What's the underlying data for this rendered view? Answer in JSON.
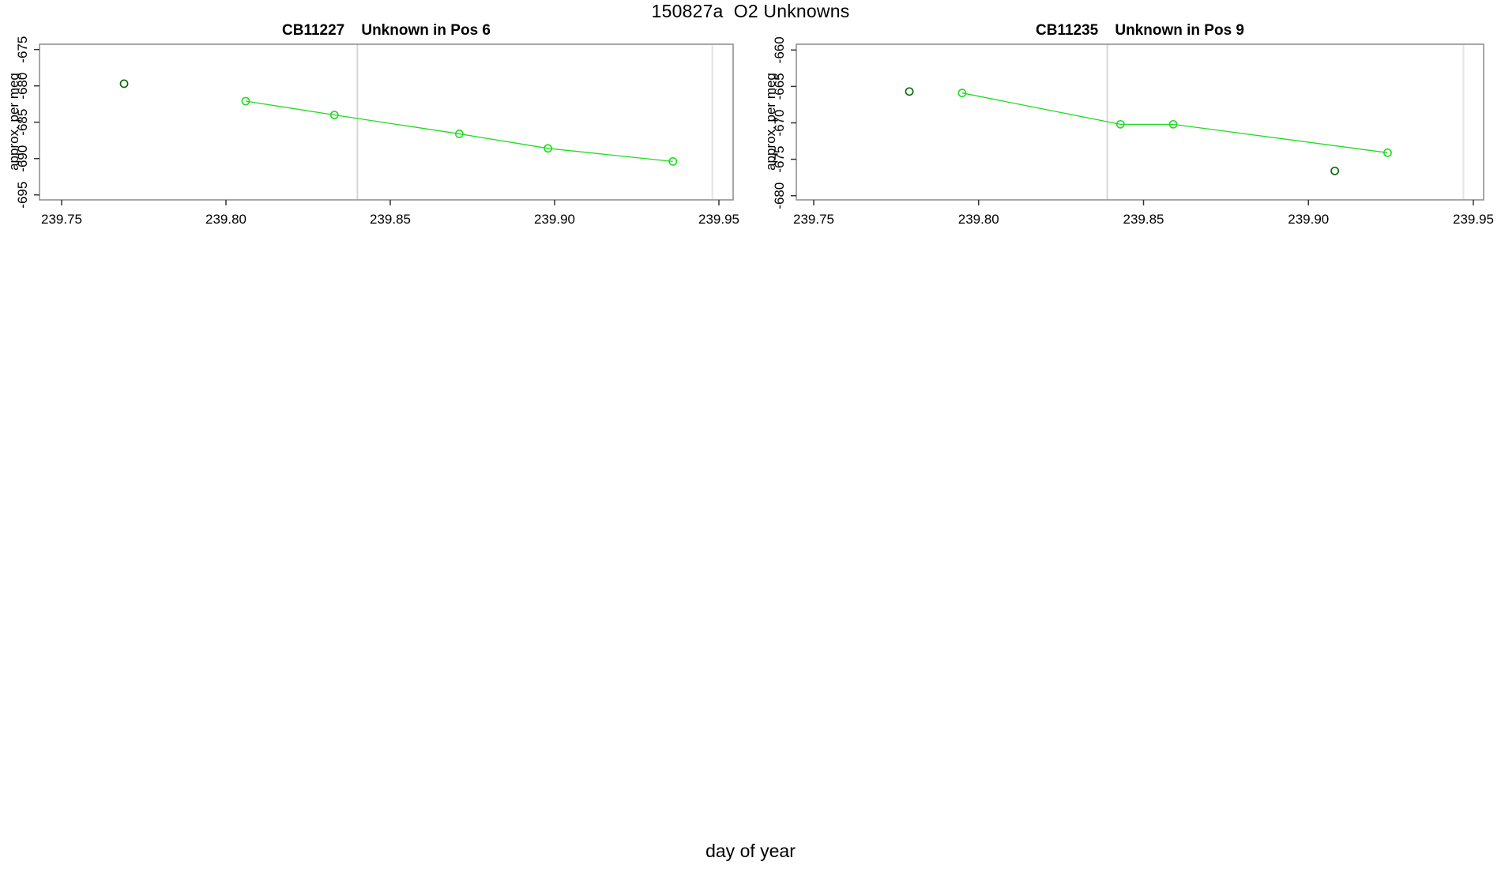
{
  "figure": {
    "title": "150827a  O2 Unknowns",
    "xlabel": "day of year"
  },
  "chart_data": {
    "type": "line",
    "layout": "two panels side by side, shared x axis range, grid off, no legend",
    "x_axis": {
      "ticks": [
        239.75,
        239.8,
        239.85,
        239.9,
        239.95
      ],
      "tick_labels": [
        "239.75",
        "239.80",
        "239.85",
        "239.90",
        "239.95"
      ],
      "xlim": [
        239.743,
        239.954
      ]
    },
    "colors": {
      "line_green": "#1EDD1E",
      "dark_green": "#006400",
      "vline_gray": "#D6D6D6",
      "vline_gray_light": "#E3E3E3",
      "box_gray": "#8A8A8A"
    },
    "charts": [
      {
        "title": "CB11227    Unknown in Pos 6",
        "ylabel": "approx. per meg",
        "y_ticks": [
          -675,
          -680,
          -685,
          -690,
          -695
        ],
        "y_tick_labels": [
          "-675",
          "-680",
          "-685",
          "-690",
          "-695"
        ],
        "ylim": [
          -695.7,
          -674.3
        ],
        "vlines": [
          239.84,
          239.948
        ],
        "series": [
          {
            "name": "isolated-point",
            "type": "scatter",
            "color": "#006400",
            "points": [
              [
                239.769,
                -679.7
              ]
            ]
          },
          {
            "name": "run-sequence",
            "type": "line",
            "color": "#1EDD1E",
            "points": [
              [
                239.806,
                -682.1
              ],
              [
                239.833,
                -684.0
              ],
              [
                239.871,
                -686.6
              ],
              [
                239.898,
                -688.6
              ],
              [
                239.936,
                -690.4
              ]
            ]
          }
        ]
      },
      {
        "title": "CB11235    Unknown in Pos 9",
        "ylabel": "approx. per meg",
        "y_ticks": [
          -660,
          -665,
          -670,
          -675,
          -680
        ],
        "y_tick_labels": [
          "-660",
          "-665",
          "-670",
          "-675",
          "-680"
        ],
        "ylim": [
          -680.6,
          -659.2
        ],
        "vlines": [
          239.839,
          239.947
        ],
        "series": [
          {
            "name": "isolated-points",
            "type": "scatter",
            "color": "#006400",
            "points": [
              [
                239.779,
                -665.7
              ],
              [
                239.908,
                -676.6
              ]
            ]
          },
          {
            "name": "run-sequence",
            "type": "line",
            "color": "#1EDD1E",
            "points": [
              [
                239.795,
                -665.9
              ],
              [
                239.843,
                -670.2
              ],
              [
                239.859,
                -670.2
              ],
              [
                239.924,
                -674.1
              ]
            ]
          }
        ]
      }
    ]
  }
}
